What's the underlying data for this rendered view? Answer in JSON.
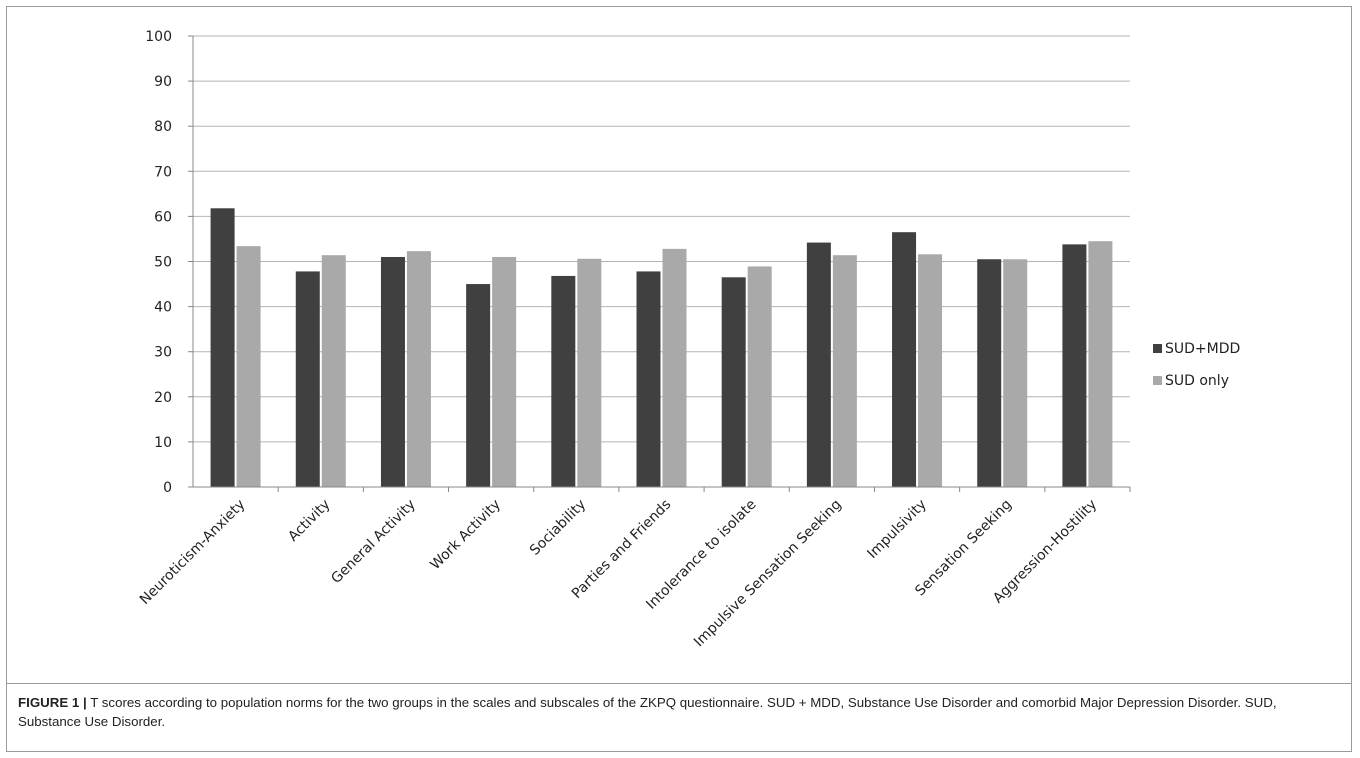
{
  "chart_data": {
    "type": "bar",
    "categories": [
      "Neuroticism-Anxiety",
      "Activity",
      "General Activity",
      "Work Activity",
      "Sociability",
      "Parties and Friends",
      "Intolerance to isolate",
      "Impulsive Sensation Seeking",
      "Impulsivity",
      "Sensation Seeking",
      "Aggression-Hostility"
    ],
    "series": [
      {
        "name": "SUD+MDD",
        "color": "#404040",
        "values": [
          61.8,
          47.8,
          51.0,
          45.0,
          46.8,
          47.8,
          46.5,
          54.2,
          56.5,
          50.5,
          53.8
        ]
      },
      {
        "name": "SUD only",
        "color": "#a9a9a9",
        "values": [
          53.4,
          51.4,
          52.3,
          51.0,
          50.6,
          52.8,
          48.9,
          51.4,
          51.6,
          50.5,
          54.5
        ]
      }
    ],
    "y_ticks": [
      "0",
      "10",
      "20",
      "30",
      "40",
      "50",
      "60",
      "70",
      "80",
      "90",
      "100"
    ],
    "ylim": [
      0,
      100
    ],
    "grid": true,
    "legend": "right"
  },
  "caption": {
    "label": "FIGURE 1 |",
    "text": " T scores according to population norms for the two groups in the scales and subscales of the ZKPQ questionnaire. SUD + MDD, Substance Use Disorder and comorbid Major Depression Disorder. SUD, Substance Use Disorder."
  }
}
